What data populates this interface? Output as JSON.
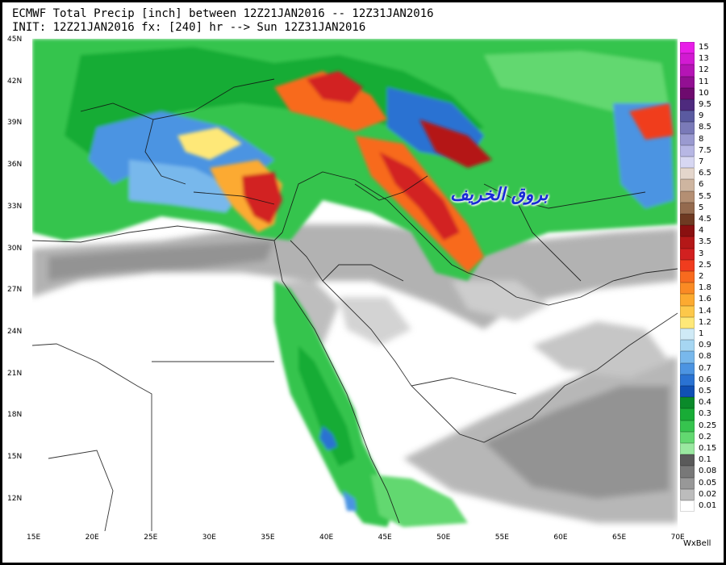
{
  "title_line1": "ECMWF Total Precip [inch] between 12Z21JAN2016 -- 12Z31JAN2016",
  "title_line2": "INIT: 12Z21JAN2016 fx: [240] hr --> Sun 12Z31JAN2016",
  "lat_labels": [
    "45N",
    "42N",
    "39N",
    "36N",
    "33N",
    "30N",
    "27N",
    "24N",
    "21N",
    "18N",
    "15N",
    "12N"
  ],
  "lon_labels": [
    "15E",
    "20E",
    "25E",
    "30E",
    "35E",
    "40E",
    "45E",
    "50E",
    "55E",
    "60E",
    "65E",
    "70E"
  ],
  "legend": [
    {
      "label": "15",
      "color": "#e81ee8"
    },
    {
      "label": "13",
      "color": "#d21ad2"
    },
    {
      "label": "12",
      "color": "#b514b5"
    },
    {
      "label": "11",
      "color": "#920f92"
    },
    {
      "label": "10",
      "color": "#6e0a6e"
    },
    {
      "label": "9.5",
      "color": "#4e2a7e"
    },
    {
      "label": "9",
      "color": "#5a5aa0"
    },
    {
      "label": "8.5",
      "color": "#7a7ab8"
    },
    {
      "label": "8",
      "color": "#9a9ad0"
    },
    {
      "label": "7.5",
      "color": "#b7b7e4"
    },
    {
      "label": "7",
      "color": "#d7d7f2"
    },
    {
      "label": "6.5",
      "color": "#e4d6cc"
    },
    {
      "label": "6",
      "color": "#ceb5a0"
    },
    {
      "label": "5.5",
      "color": "#b48f73"
    },
    {
      "label": "5",
      "color": "#946a4e"
    },
    {
      "label": "4.5",
      "color": "#6e3a22"
    },
    {
      "label": "4",
      "color": "#8a1010"
    },
    {
      "label": "3.5",
      "color": "#b41818"
    },
    {
      "label": "3",
      "color": "#d22020"
    },
    {
      "label": "2.5",
      "color": "#f03c1e"
    },
    {
      "label": "2",
      "color": "#f86a1e"
    },
    {
      "label": "1.8",
      "color": "#fa8a24"
    },
    {
      "label": "1.6",
      "color": "#fcaa30"
    },
    {
      "label": "1.4",
      "color": "#fdc84a"
    },
    {
      "label": "1.2",
      "color": "#fee878"
    },
    {
      "label": "1",
      "color": "#cfeaf6"
    },
    {
      "label": "0.9",
      "color": "#a6d6f2"
    },
    {
      "label": "0.8",
      "color": "#78b8ec"
    },
    {
      "label": "0.7",
      "color": "#4c94e2"
    },
    {
      "label": "0.6",
      "color": "#2a72d2"
    },
    {
      "label": "0.5",
      "color": "#1050b4"
    },
    {
      "label": "0.4",
      "color": "#0a8a2a"
    },
    {
      "label": "0.3",
      "color": "#18ac36"
    },
    {
      "label": "0.25",
      "color": "#36c44e"
    },
    {
      "label": "0.2",
      "color": "#62d870"
    },
    {
      "label": "0.15",
      "color": "#9ae8a0"
    },
    {
      "label": "0.1",
      "color": "#5a5a5a"
    },
    {
      "label": "0.08",
      "color": "#787878"
    },
    {
      "label": "0.05",
      "color": "#989898"
    },
    {
      "label": "0.02",
      "color": "#bcbcbc"
    },
    {
      "label": "0.01",
      "color": "#ffffff"
    }
  ],
  "credit": "WxBell",
  "overlay_text": "بروق الخريف",
  "colors": {
    "ocean_rain_green": "#36c44e",
    "heavy_red": "#d22020",
    "light_grey": "#b4b4b4",
    "overlay_text": "#1a2bd6"
  }
}
